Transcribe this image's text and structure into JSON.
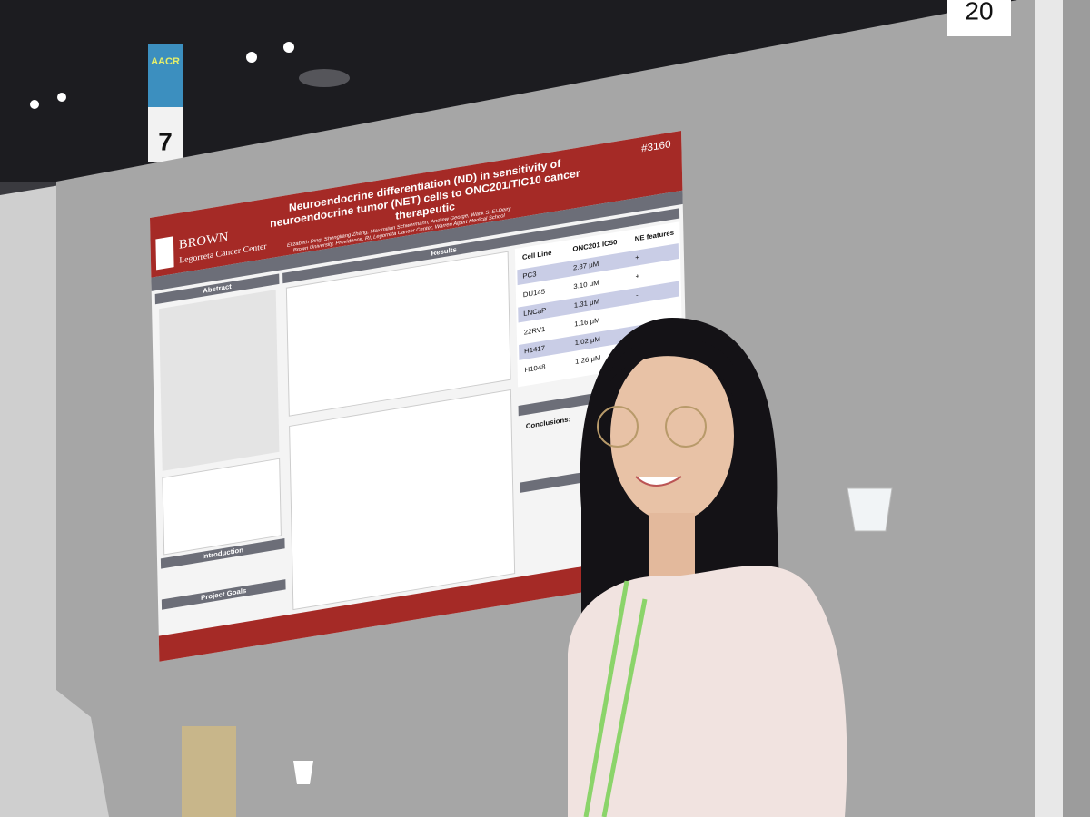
{
  "booth_number": "20",
  "aisle_sign": {
    "label": "AACR",
    "number": "7"
  },
  "poster": {
    "id": "#3160",
    "title": "Neuroendocrine differentiation (ND) in sensitivity of neuroendocrine tumor (NET) cells to ONC201/TIC10 cancer therapeutic",
    "institution": {
      "name": "BROWN",
      "center": "Legorreta Cancer Center"
    },
    "authors": "Elizabeth Ding, Shengliang Zhang, Maximilian Schwermann, Andrew George, Wafik S. El-Deiry",
    "affiliations": "Brown University, Providence, RI, Legorreta Cancer Center, Warren Alpert Medical School",
    "sections": {
      "abstract": "Abstract",
      "results": "Results",
      "introduction": "Introduction",
      "project_goals": "Project Goals",
      "conclusions": "Conclusions:"
    },
    "table": {
      "header": [
        "Cell Line",
        "ONC201 IC50",
        "NE features"
      ],
      "rows": [
        [
          "PC3",
          "2.87 μM",
          "+"
        ],
        [
          "DU145",
          "3.10 μM",
          "+"
        ],
        [
          "LNCaP",
          "1.31 μM",
          "-"
        ],
        [
          "22RV1",
          "1.16 μM",
          ""
        ],
        [
          "H1417",
          "1.02 μM",
          ""
        ],
        [
          "H1048",
          "1.26 μM",
          ""
        ]
      ]
    }
  }
}
